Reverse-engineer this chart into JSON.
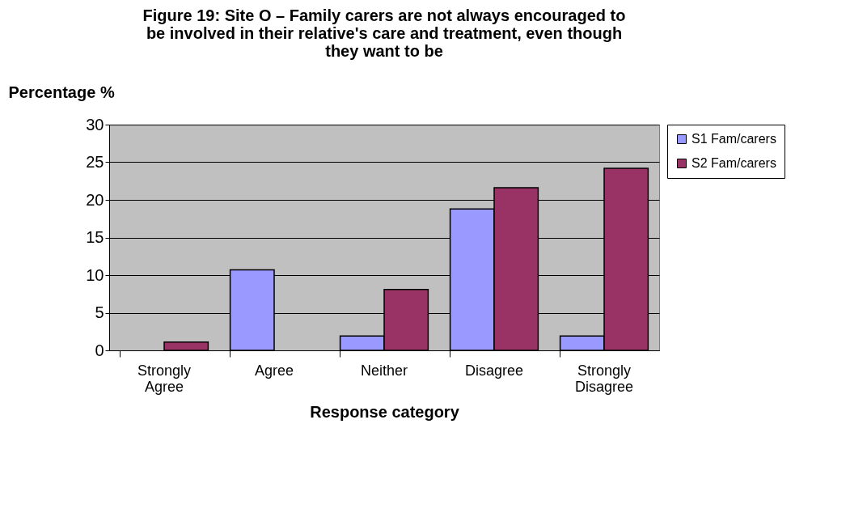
{
  "chart_data": {
    "type": "bar",
    "title": "Figure 19: Site O – Family carers are not always encouraged to be involved in their relative's care and treatment, even though they want to be",
    "xlabel": "Response category",
    "ylabel": "Percentage %",
    "categories": [
      "Strongly Agree",
      "Agree",
      "Neither",
      "Disagree",
      "Strongly Disagree"
    ],
    "series": [
      {
        "name": "S1 Fam/carers",
        "color": "#9999ff",
        "values": [
          null,
          10.7,
          1.9,
          18.8,
          1.9
        ]
      },
      {
        "name": "S2 Fam/carers",
        "color": "#993366",
        "values": [
          1.1,
          null,
          8.1,
          21.6,
          24.2
        ]
      }
    ],
    "ylim": [
      0,
      30
    ],
    "yticks": [
      0,
      5,
      10,
      15,
      20,
      25,
      30
    ],
    "grid": "y",
    "legend": "right"
  }
}
